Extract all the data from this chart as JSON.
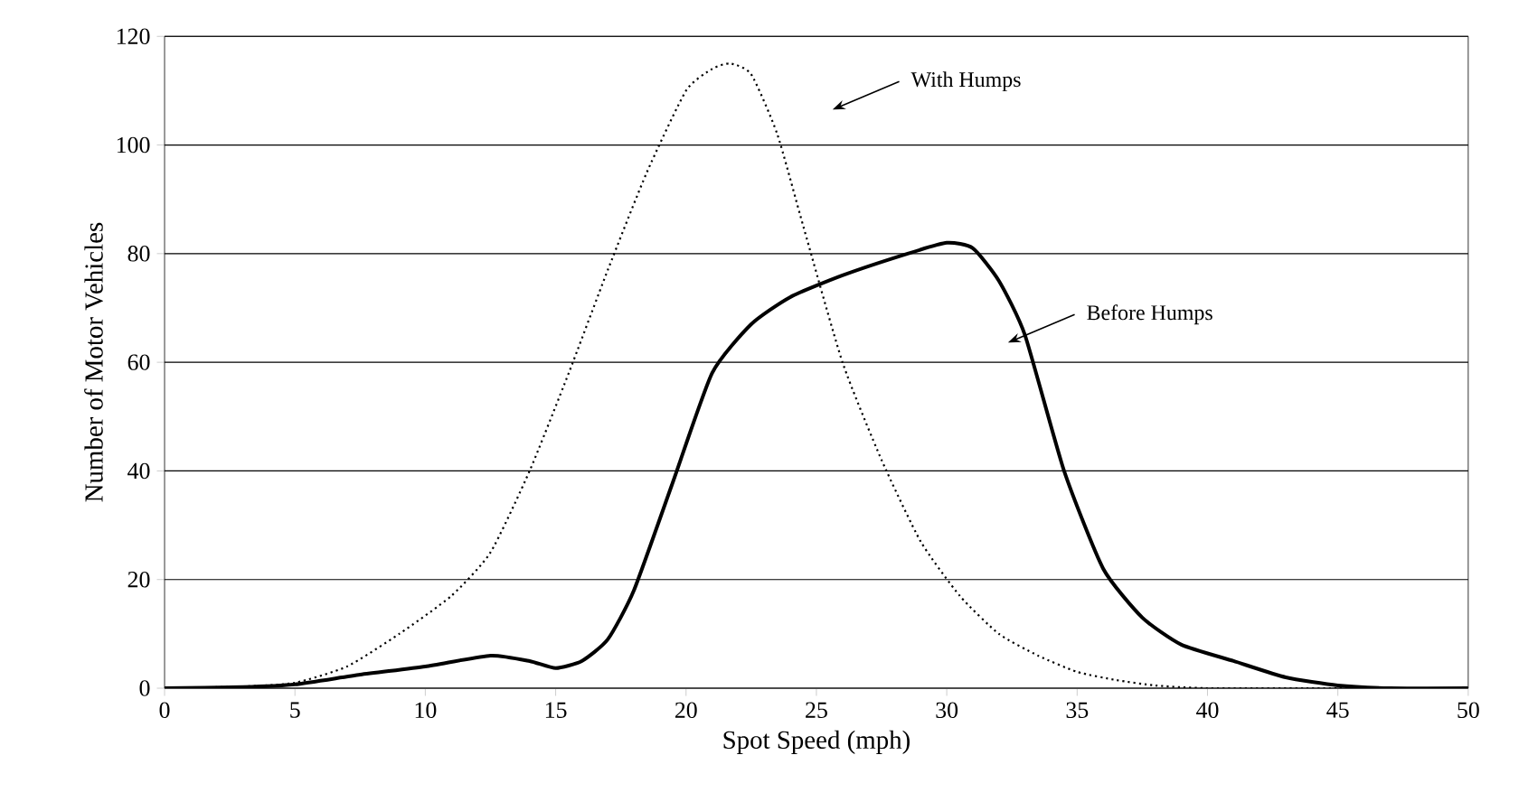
{
  "chart_data": {
    "type": "line",
    "xlabel": "Spot Speed (mph)",
    "ylabel": "Number of Motor Vehicles",
    "xlim": [
      0,
      50
    ],
    "ylim": [
      0,
      120
    ],
    "xticks": [
      0,
      5,
      10,
      15,
      20,
      25,
      30,
      35,
      40,
      45,
      50
    ],
    "yticks": [
      0,
      20,
      40,
      60,
      80,
      100,
      120
    ],
    "grid": "y",
    "marker": "none",
    "series": [
      {
        "color": "#000000",
        "line_style": "dotted",
        "x": [
          0,
          3,
          5,
          7,
          9,
          11,
          12.5,
          14,
          15.5,
          17,
          18.5,
          20,
          21,
          21.7,
          22.5,
          23.5,
          24.5,
          26,
          27.5,
          29,
          30.5,
          32,
          33.5,
          35,
          36.5,
          38,
          40,
          45,
          50
        ],
        "values": [
          0,
          0.3,
          1,
          4,
          10,
          17,
          25,
          40,
          58,
          77,
          95,
          110,
          114,
          115,
          113,
          102,
          85,
          60,
          42,
          27,
          17,
          10,
          6,
          3,
          1.5,
          0.5,
          0,
          0,
          0
        ]
      },
      {
        "color": "#000000",
        "line_style": "solid",
        "x": [
          0,
          3,
          5,
          7.5,
          10,
          12.5,
          14,
          15,
          16,
          17,
          18,
          19.5,
          21,
          22.5,
          24,
          26,
          28.5,
          30,
          31,
          32,
          33,
          34.5,
          36,
          37.5,
          39,
          41,
          43,
          45,
          47,
          50
        ],
        "values": [
          0,
          0.2,
          0.7,
          2.5,
          4,
          6,
          5,
          3.7,
          5,
          9,
          18,
          38,
          58,
          67,
          72,
          76,
          80,
          82,
          81,
          75,
          65,
          40,
          22,
          13,
          8,
          5,
          2,
          0.5,
          0,
          0
        ]
      }
    ],
    "annotations": [
      "With Humps",
      "Before Humps"
    ]
  }
}
